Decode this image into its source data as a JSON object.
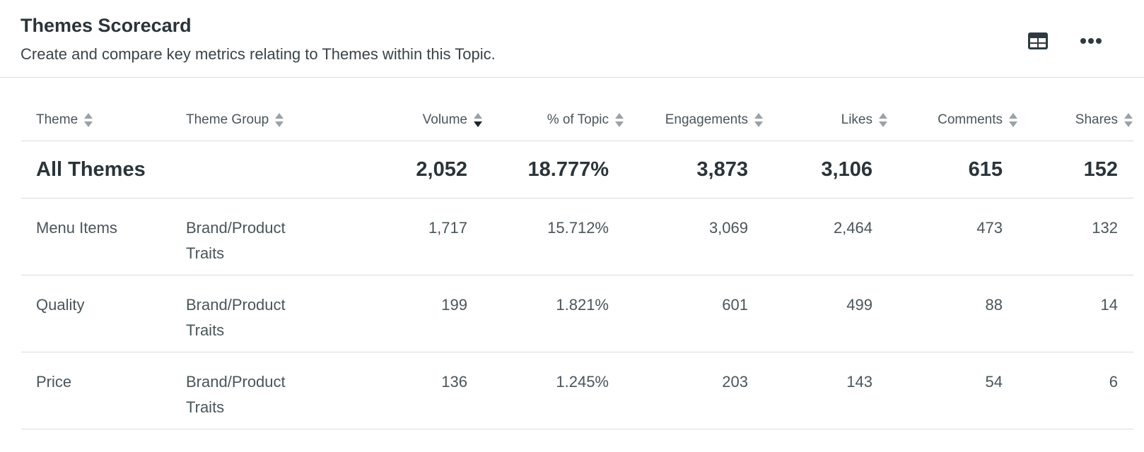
{
  "header": {
    "title": "Themes Scorecard",
    "subtitle": "Create and compare key metrics relating to Themes within this Topic."
  },
  "toolbar": {
    "view_icon": "table-view-icon",
    "more_icon": "more-options-icon"
  },
  "table": {
    "columns": [
      "Theme",
      "Theme Group",
      "Volume",
      "% of Topic",
      "Engagements",
      "Likes",
      "Comments",
      "Shares"
    ],
    "sorted_column": "Volume",
    "sort_direction": "descending",
    "total": {
      "theme": "All Themes",
      "group": "",
      "volume": "2,052",
      "pct": "18.777%",
      "engagements": "3,873",
      "likes": "3,106",
      "comments": "615",
      "shares": "152"
    },
    "rows": [
      {
        "theme": "Menu Items",
        "group": "Brand/Product Traits",
        "volume": "1,717",
        "pct": "15.712%",
        "engagements": "3,069",
        "likes": "2,464",
        "comments": "473",
        "shares": "132"
      },
      {
        "theme": "Quality",
        "group": "Brand/Product Traits",
        "volume": "199",
        "pct": "1.821%",
        "engagements": "601",
        "likes": "499",
        "comments": "88",
        "shares": "14"
      },
      {
        "theme": "Price",
        "group": "Brand/Product Traits",
        "volume": "136",
        "pct": "1.245%",
        "engagements": "203",
        "likes": "143",
        "comments": "54",
        "shares": "6"
      }
    ]
  },
  "colors": {
    "sort_inactive": "#9aa2a6",
    "sort_active": "#1f2428",
    "divider": "#d9dcdf"
  }
}
